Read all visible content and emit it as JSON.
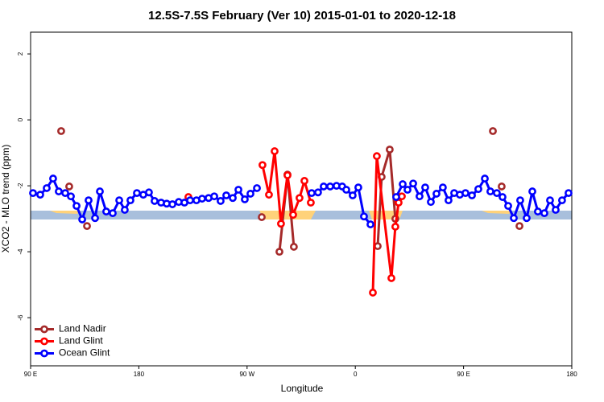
{
  "chart_data": {
    "type": "line",
    "title": "12.5S-7.5S February (Ver 10)   2015-01-01 to 2020-12-18",
    "x_label": "Longitude",
    "y_label": "XCO2 - MLO trend (ppm)",
    "xlim": [
      90,
      540
    ],
    "xticks": [
      {
        "value": 90,
        "label": "90 E"
      },
      180,
      {
        "value": 270,
        "label": "90 W"
      },
      {
        "value": 360,
        "label": "0"
      },
      {
        "value": 450,
        "label": "90 E"
      },
      {
        "value": 540,
        "label": "180"
      }
    ],
    "ylim": [
      -7.46,
      2.66
    ],
    "yticks": [
      -6,
      -4,
      -2,
      0,
      2
    ],
    "legend": "bottom left",
    "series": [
      {
        "name": "Land Nadir",
        "color": "#a52a2a",
        "x": [
          115.4,
          null,
          122.1,
          null,
          136.9,
          null,
          282.2,
          null,
          296.9,
          303.6,
          308.9,
          null,
          378.6,
          381.9,
          388.6,
          393.3,
          null,
          474.4,
          null,
          481.7,
          null,
          496.5
        ],
        "values": [
          -0.34,
          null,
          -2.02,
          null,
          -3.22,
          null,
          -2.95,
          null,
          -4.0,
          -1.66,
          -3.85,
          null,
          -3.83,
          -1.73,
          -0.9,
          -3.0,
          null,
          -0.34,
          null,
          -2.02,
          null,
          -3.22
        ]
      },
      {
        "name": "Land Glint",
        "color": "#ff0000",
        "x": [
          221.2,
          null,
          282.8,
          288.2,
          292.9,
          298.2,
          303.6,
          308.3,
          313.6,
          317.7,
          323.0,
          null,
          374.6,
          377.9,
          390.0,
          393.3,
          396.0,
          398.7
        ],
        "values": [
          -2.34,
          null,
          -1.37,
          -2.27,
          -0.95,
          -3.15,
          -1.68,
          -2.88,
          -2.37,
          -1.85,
          -2.51,
          null,
          -5.24,
          -1.1,
          -4.8,
          -3.24,
          -2.51,
          -2.32
        ]
      },
      {
        "name": "Ocean Glint",
        "color": "#0000ff",
        "x": [
          92.0,
          98.0,
          103.4,
          108.7,
          113.4,
          118.8,
          123.5,
          128.2,
          132.9,
          138.2,
          143.6,
          147.6,
          152.9,
          158.3,
          163.7,
          168.3,
          173.0,
          178.4,
          183.7,
          188.4,
          193.1,
          198.5,
          203.2,
          207.9,
          213.2,
          217.9,
          222.6,
          227.9,
          232.6,
          238.0,
          242.7,
          248.0,
          252.7,
          258.1,
          262.8,
          268.1,
          272.8,
          278.2,
          null,
          323.7,
          329.0,
          333.7,
          339.1,
          344.4,
          349.1,
          352.5,
          357.8,
          362.5,
          367.2,
          372.6,
          null,
          394.0,
          399.4,
          403.4,
          408.1,
          413.4,
          418.1,
          422.8,
          427.5,
          432.8,
          437.5,
          442.2,
          446.9,
          451.6,
          457.0,
          462.3,
          467.7,
          472.3,
          477.7,
          482.4,
          487.1,
          491.8,
          497.1,
          502.5,
          507.2,
          511.8,
          517.2,
          521.9,
          526.6,
          531.9,
          537.3
        ],
        "values": [
          -2.22,
          -2.27,
          -2.07,
          -1.78,
          -2.17,
          -2.22,
          -2.32,
          -2.61,
          -3.02,
          -2.44,
          -2.98,
          -2.17,
          -2.78,
          -2.83,
          -2.44,
          -2.73,
          -2.44,
          -2.22,
          -2.27,
          -2.2,
          -2.46,
          -2.51,
          -2.54,
          -2.56,
          -2.49,
          -2.51,
          -2.44,
          -2.44,
          -2.39,
          -2.37,
          -2.32,
          -2.46,
          -2.29,
          -2.37,
          -2.12,
          -2.41,
          -2.24,
          -2.07,
          null,
          -2.22,
          -2.2,
          -2.02,
          -2.02,
          -2.0,
          -2.02,
          -2.12,
          -2.29,
          -2.05,
          -2.93,
          -3.17,
          null,
          -2.34,
          -1.95,
          -2.12,
          -1.93,
          -2.32,
          -2.05,
          -2.49,
          -2.24,
          -2.05,
          -2.44,
          -2.22,
          -2.27,
          -2.22,
          -2.29,
          -2.1,
          -1.78,
          -2.17,
          -2.22,
          -2.34,
          -2.61,
          -2.98,
          -2.44,
          -2.98,
          -2.17,
          -2.78,
          -2.83,
          -2.44,
          -2.73,
          -2.44,
          -2.22
        ]
      }
    ]
  }
}
